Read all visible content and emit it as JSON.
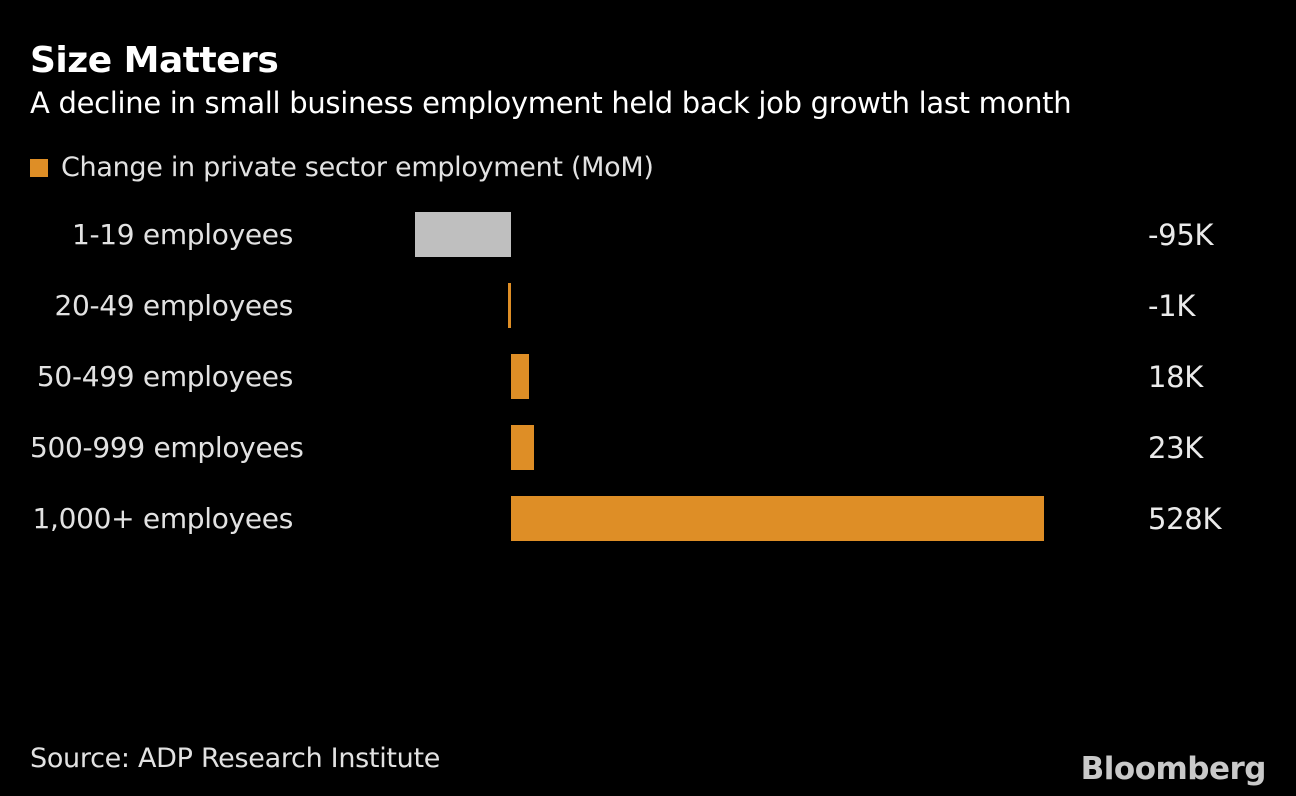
{
  "header": {
    "title": "Size Matters",
    "subtitle": "A decline in small business employment held back job growth last month"
  },
  "legend": {
    "label": "Change in private sector employment (MoM)",
    "swatch_color": "#de8e26"
  },
  "chart_data": {
    "type": "bar",
    "orientation": "horizontal",
    "title": "Size Matters",
    "subtitle": "A decline in small business employment held back job growth last month",
    "series_name": "Change in private sector employment (MoM)",
    "unit": "thousands of jobs (K)",
    "categories": [
      "1-19 employees",
      "20-49 employees",
      "50-499 employees",
      "500-999 employees",
      "1,000+ employees"
    ],
    "values": [
      -95,
      -1,
      18,
      23,
      528
    ],
    "value_labels": [
      "-95K",
      "-1K",
      "18K",
      "23K",
      "528K"
    ],
    "bar_colors": [
      "#bfbfbf",
      "#de8e26",
      "#de8e26",
      "#de8e26",
      "#de8e26"
    ],
    "axis": {
      "min": -95,
      "max": 528,
      "baseline": 0,
      "gridlines": false,
      "tick_labels_visible": false
    },
    "legend_position": "top-left",
    "value_label_position": "right-column"
  },
  "footer": {
    "source": "Source: ADP Research Institute",
    "brand": "Bloomberg"
  },
  "colors": {
    "background": "#000000",
    "accent_orange": "#de8e26",
    "highlight_gray": "#bfbfbf",
    "text_primary": "#ffffff",
    "text_secondary": "#e2e2e2",
    "brand_gray": "#c9c9c9"
  }
}
